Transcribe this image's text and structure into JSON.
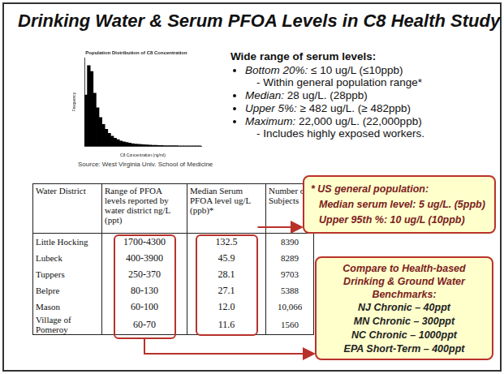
{
  "title": "Drinking Water & Serum PFOA Levels in C8 Health Study",
  "chart_data": {
    "type": "histogram",
    "title": "Population Distribution of C8 Concentration",
    "x_label": "C8 Concentration (ng/ml)",
    "y_label": "Frequency",
    "bins": [
      0,
      25,
      50,
      75,
      100,
      125,
      150,
      175,
      200,
      225,
      250,
      275,
      300,
      325,
      350,
      375,
      400,
      425,
      450,
      475,
      500,
      525,
      550,
      575,
      600,
      625,
      650,
      675,
      700,
      725,
      750,
      775,
      800,
      825,
      850,
      875,
      900,
      925,
      950,
      975,
      1000
    ],
    "counts": [
      5200,
      8200,
      7600,
      5400,
      3900,
      2900,
      2200,
      1700,
      1300,
      1000,
      800,
      650,
      520,
      430,
      360,
      300,
      250,
      210,
      180,
      150,
      130,
      110,
      95,
      80,
      70,
      60,
      52,
      45,
      40,
      35,
      30,
      26,
      22,
      19,
      16,
      14,
      12,
      10,
      8,
      6
    ],
    "xlim": [
      0,
      1000
    ],
    "ylim": [
      0,
      9000
    ],
    "color": "#000000",
    "grid": false,
    "tick_labels": false
  },
  "source": "Source: West Virginia Univ. School of Medicine",
  "summary": {
    "heading": "Wide range of serum levels:",
    "items": [
      {
        "label": "Bottom 20%:",
        "text": " ≤ 10 ug/L  (≤10ppb)",
        "note": "- Within general population range*"
      },
      {
        "label": "Median:",
        "text": " 28 ug/L. (28ppb)"
      },
      {
        "label": "Upper 5%:",
        "text": " ≥ 482 ug/L. (≥ 482ppb)"
      },
      {
        "label": "Maximum:",
        "text": " 22,000 ug/L. (22,000ppb)",
        "note": "- Includes highly exposed workers."
      }
    ]
  },
  "table": {
    "header": [
      "Water District",
      "Range of PFOA levels reported by water district ng/L (ppt)",
      "Median Serum PFOA level ug/L (ppb)*",
      "Number of Subjects"
    ],
    "rows": [
      [
        "Little Hocking",
        "1700-4300",
        "132.5",
        "8390"
      ],
      [
        "Lubeck",
        "400-3900",
        "45.9",
        "8289"
      ],
      [
        "Tuppers",
        "250-370",
        "28.1",
        "9703"
      ],
      [
        "Belpre",
        "80-130",
        "27.1",
        "5388"
      ],
      [
        "Mason",
        "60-100",
        "12.0",
        "10,066"
      ],
      [
        "Village of Pomeroy",
        "60-70",
        "11.6",
        "1560"
      ]
    ]
  },
  "callouts": [
    {
      "heading": [
        "* US general population:"
      ],
      "items": [
        "Median serum level: 5 ug/L. (5ppb)",
        "Upper 95th %: 10 ug/L (10ppb)"
      ]
    },
    {
      "heading": [
        "Compare to Health-based",
        "Drinking & Ground Water",
        "Benchmarks:"
      ],
      "items": [
        "NJ Chronic – 40ppt",
        "MN Chronic – 300ppt",
        "NC Chronic – 1000ppt",
        "EPA Short-Term – 400ppt"
      ]
    }
  ]
}
